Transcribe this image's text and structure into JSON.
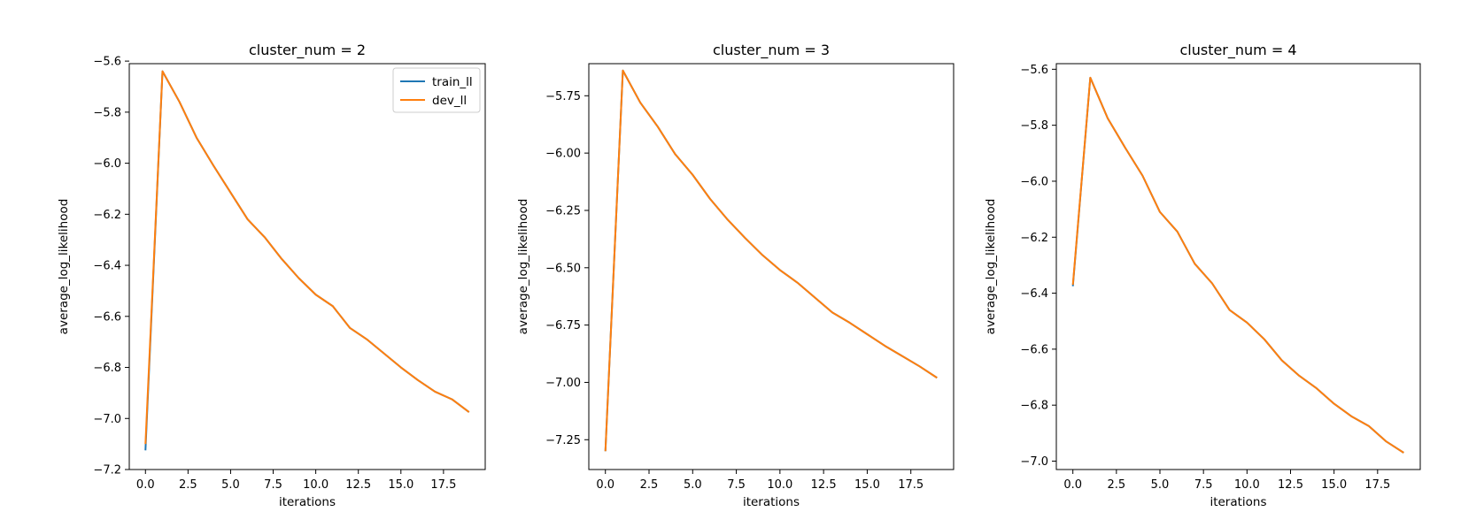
{
  "colors": {
    "train_ll": "#1f77b4",
    "dev_ll": "#ff7f0e"
  },
  "chart_data": [
    {
      "type": "line",
      "title": "cluster_num = 2",
      "xlabel": "iterations",
      "ylabel": "average_log_likelihood",
      "xlim": [
        -0.95,
        19.95
      ],
      "ylim": [
        -7.2,
        -5.61
      ],
      "xticks": [
        0,
        2.5,
        5,
        7.5,
        10,
        12.5,
        15,
        17.5
      ],
      "xtick_labels": [
        "0.0",
        "2.5",
        "5.0",
        "7.5",
        "10.0",
        "12.5",
        "15.0",
        "17.5"
      ],
      "yticks": [
        -5.6,
        -5.8,
        -6.0,
        -6.2,
        -6.4,
        -6.6,
        -6.8,
        -7.0,
        -7.2
      ],
      "ytick_labels": [
        "−5.6",
        "−5.8",
        "−6.0",
        "−6.2",
        "−6.4",
        "−6.6",
        "−6.8",
        "−7.0",
        "−7.2"
      ],
      "legend": {
        "position": "top-right",
        "entries": [
          "train_ll",
          "dev_ll"
        ]
      },
      "x": [
        0,
        1,
        2,
        3,
        4,
        5,
        6,
        7,
        8,
        9,
        10,
        11,
        12,
        13,
        14,
        15,
        16,
        17,
        18,
        19
      ],
      "series": [
        {
          "name": "train_ll",
          "values": [
            -7.125,
            -5.64,
            -5.76,
            -5.9,
            -6.01,
            -6.115,
            -6.22,
            -6.29,
            -6.375,
            -6.45,
            -6.515,
            -6.56,
            -6.645,
            -6.69,
            -6.745,
            -6.8,
            -6.85,
            -6.895,
            -6.925,
            -6.975
          ]
        },
        {
          "name": "dev_ll",
          "values": [
            -7.1,
            -5.64,
            -5.76,
            -5.9,
            -6.01,
            -6.115,
            -6.22,
            -6.29,
            -6.375,
            -6.45,
            -6.515,
            -6.56,
            -6.645,
            -6.69,
            -6.745,
            -6.8,
            -6.85,
            -6.895,
            -6.925,
            -6.975
          ]
        }
      ]
    },
    {
      "type": "line",
      "title": "cluster_num = 3",
      "xlabel": "iterations",
      "ylabel": "average_log_likelihood",
      "xlim": [
        -0.95,
        19.95
      ],
      "ylim": [
        -7.38,
        -5.61
      ],
      "xticks": [
        0,
        2.5,
        5,
        7.5,
        10,
        12.5,
        15,
        17.5
      ],
      "xtick_labels": [
        "0.0",
        "2.5",
        "5.0",
        "7.5",
        "10.0",
        "12.5",
        "15.0",
        "17.5"
      ],
      "yticks": [
        -5.75,
        -6.0,
        -6.25,
        -6.5,
        -6.75,
        -7.0,
        -7.25
      ],
      "ytick_labels": [
        "−5.75",
        "−6.00",
        "−6.25",
        "−6.50",
        "−6.75",
        "−7.00",
        "−7.25"
      ],
      "x": [
        0,
        1,
        2,
        3,
        4,
        5,
        6,
        7,
        8,
        9,
        10,
        11,
        12,
        13,
        14,
        15,
        16,
        17,
        18,
        19
      ],
      "series": [
        {
          "values": [
            -7.3,
            -5.64,
            -5.78,
            -5.885,
            -6.005,
            -6.095,
            -6.2,
            -6.29,
            -6.37,
            -6.445,
            -6.51,
            -6.565,
            -6.63,
            -6.695,
            -6.74,
            -6.79,
            -6.84,
            -6.885,
            -6.93,
            -6.98
          ]
        },
        {
          "values": [
            -7.3,
            -5.64,
            -5.78,
            -5.885,
            -6.005,
            -6.095,
            -6.2,
            -6.29,
            -6.37,
            -6.445,
            -6.51,
            -6.565,
            -6.63,
            -6.695,
            -6.74,
            -6.79,
            -6.84,
            -6.885,
            -6.93,
            -6.98
          ]
        }
      ]
    },
    {
      "type": "line",
      "title": "cluster_num = 4",
      "xlabel": "iterations",
      "ylabel": "average_log_likelihood",
      "xlim": [
        -0.95,
        19.95
      ],
      "ylim": [
        -7.03,
        -5.58
      ],
      "xticks": [
        0,
        2.5,
        5,
        7.5,
        10,
        12.5,
        15,
        17.5
      ],
      "xtick_labels": [
        "0.0",
        "2.5",
        "5.0",
        "7.5",
        "10.0",
        "12.5",
        "15.0",
        "17.5"
      ],
      "yticks": [
        -5.6,
        -5.8,
        -6.0,
        -6.2,
        -6.4,
        -6.6,
        -6.8,
        -7.0
      ],
      "ytick_labels": [
        "−5.6",
        "−5.8",
        "−6.0",
        "−6.2",
        "−6.4",
        "−6.6",
        "−6.8",
        "−7.0"
      ],
      "x": [
        0,
        1,
        2,
        3,
        4,
        5,
        6,
        7,
        8,
        9,
        10,
        11,
        12,
        13,
        14,
        15,
        16,
        17,
        18,
        19
      ],
      "series": [
        {
          "values": [
            -6.375,
            -5.63,
            -5.775,
            -5.88,
            -5.98,
            -6.11,
            -6.18,
            -6.295,
            -6.365,
            -6.46,
            -6.505,
            -6.565,
            -6.64,
            -6.695,
            -6.74,
            -6.795,
            -6.84,
            -6.875,
            -6.93,
            -6.97
          ]
        },
        {
          "values": [
            -6.37,
            -5.63,
            -5.775,
            -5.88,
            -5.98,
            -6.11,
            -6.18,
            -6.295,
            -6.365,
            -6.46,
            -6.505,
            -6.565,
            -6.64,
            -6.695,
            -6.74,
            -6.795,
            -6.84,
            -6.875,
            -6.93,
            -6.97
          ]
        }
      ]
    }
  ]
}
